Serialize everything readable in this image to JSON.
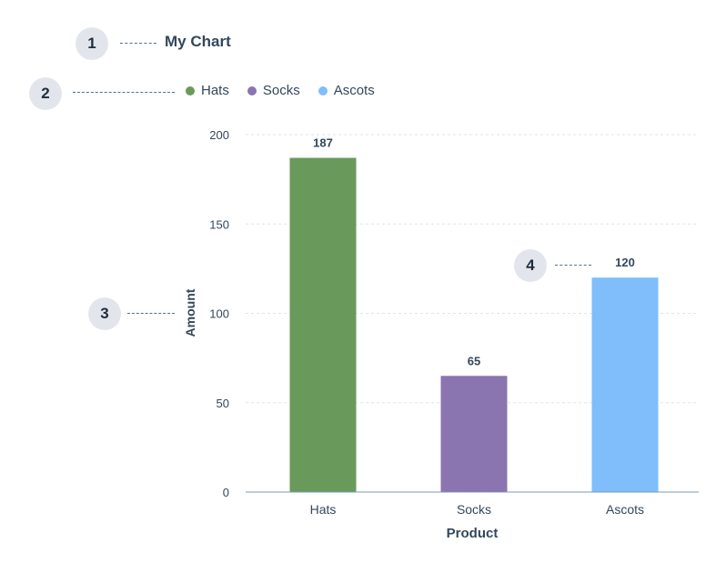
{
  "annotations": [
    {
      "number": "1"
    },
    {
      "number": "2"
    },
    {
      "number": "3"
    },
    {
      "number": "4"
    }
  ],
  "colors": {
    "grid": "#dfe3eb",
    "axis": "#7c98b6",
    "text": "#33475b"
  },
  "chart_data": {
    "type": "bar",
    "title": "My Chart",
    "xlabel": "Product",
    "ylabel": "Amount",
    "categories": [
      "Hats",
      "Socks",
      "Ascots"
    ],
    "values": [
      187,
      65,
      120
    ],
    "data_labels": [
      "187",
      "65",
      "120"
    ],
    "bar_colors": [
      "#6a9a5b",
      "#8a75b0",
      "#7fbefb"
    ],
    "ylim": [
      0,
      200
    ],
    "yticks": [
      0,
      50,
      100,
      150,
      200
    ],
    "grid": true,
    "legend": {
      "position": "top-left",
      "entries": [
        {
          "label": "Hats",
          "color": "#6a9a5b"
        },
        {
          "label": "Socks",
          "color": "#8a75b0"
        },
        {
          "label": "Ascots",
          "color": "#7fbefb"
        }
      ]
    }
  }
}
